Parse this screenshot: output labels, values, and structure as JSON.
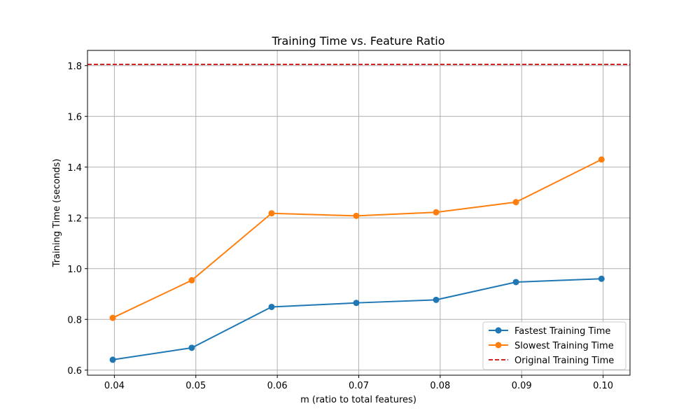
{
  "chart_data": {
    "type": "line",
    "title": "Training Time vs. Feature Ratio",
    "xlabel": "m (ratio to total features)",
    "ylabel": "Training Time (seconds)",
    "xlim": [
      0.0367,
      0.1033
    ],
    "ylim": [
      0.58,
      1.86
    ],
    "xticks": [
      0.04,
      0.05,
      0.06,
      0.07,
      0.08,
      0.09,
      0.1
    ],
    "xtick_labels": [
      "0.04",
      "0.05",
      "0.06",
      "0.07",
      "0.08",
      "0.09",
      "0.10"
    ],
    "yticks": [
      0.6,
      0.8,
      1.0,
      1.2,
      1.4,
      1.6,
      1.8
    ],
    "ytick_labels": [
      "0.6",
      "0.8",
      "1.0",
      "1.2",
      "1.4",
      "1.6",
      "1.8"
    ],
    "grid": true,
    "legend_position": "lower-right",
    "x": [
      0.0398,
      0.0495,
      0.0593,
      0.0697,
      0.0795,
      0.0893,
      0.0998
    ],
    "series": [
      {
        "name": "Fastest Training Time",
        "color": "#1f77b4",
        "style": "line-marker",
        "values": [
          0.641,
          0.688,
          0.849,
          0.865,
          0.877,
          0.947,
          0.96
        ]
      },
      {
        "name": "Slowest Training Time",
        "color": "#ff7f0e",
        "style": "line-marker",
        "values": [
          0.806,
          0.954,
          1.218,
          1.208,
          1.222,
          1.262,
          1.43
        ]
      }
    ],
    "reference_lines": [
      {
        "name": "Original Training Time",
        "color": "#d62728",
        "style": "dashed",
        "y": 1.805
      }
    ]
  }
}
